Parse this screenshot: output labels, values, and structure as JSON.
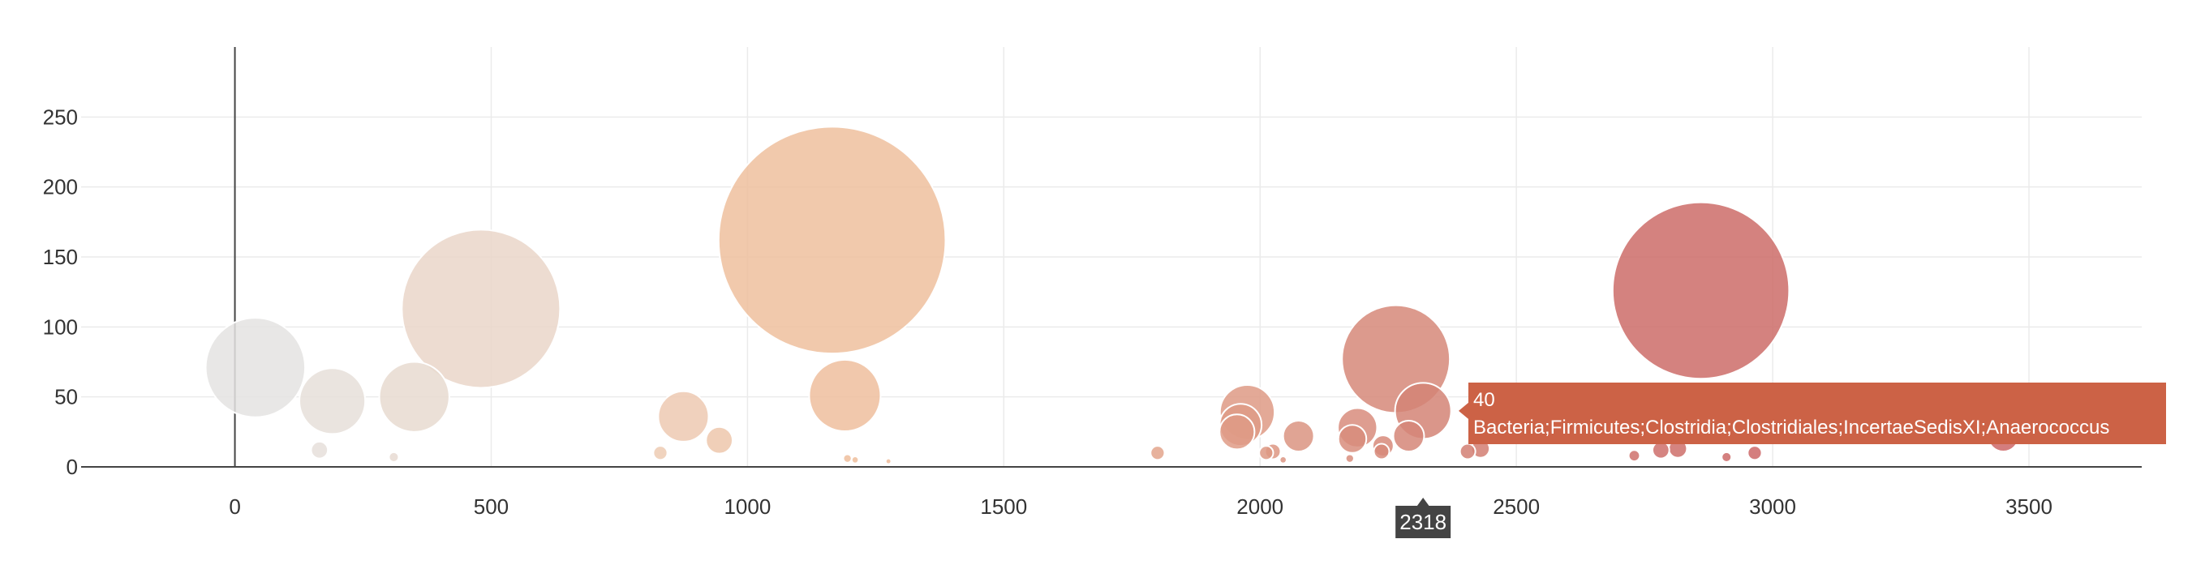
{
  "chart_data": {
    "type": "scatter",
    "subtype": "bubble",
    "xlim": [
      -300,
      3720
    ],
    "ylim": [
      0,
      300
    ],
    "x_ticks": [
      0,
      500,
      1000,
      1500,
      2000,
      2500,
      3000,
      3500
    ],
    "y_ticks": [
      0,
      50,
      100,
      150,
      200,
      250
    ],
    "grid": true,
    "colorscale": [
      "#e4e4e4",
      "#ebd3c2",
      "#efbe9c",
      "#e3a58c",
      "#d27f73",
      "#cc6666"
    ],
    "points": [
      {
        "x": 40,
        "y": 71,
        "size": 71
      },
      {
        "x": 190,
        "y": 47,
        "size": 47
      },
      {
        "x": 165,
        "y": 12,
        "size": 12
      },
      {
        "x": 350,
        "y": 50,
        "size": 50
      },
      {
        "x": 310,
        "y": 7,
        "size": 7
      },
      {
        "x": 480,
        "y": 113,
        "size": 113
      },
      {
        "x": 830,
        "y": 10,
        "size": 10
      },
      {
        "x": 875,
        "y": 36,
        "size": 36
      },
      {
        "x": 945,
        "y": 19,
        "size": 19
      },
      {
        "x": 1165,
        "y": 162,
        "size": 162
      },
      {
        "x": 1190,
        "y": 51,
        "size": 51
      },
      {
        "x": 1195,
        "y": 6,
        "size": 6
      },
      {
        "x": 1210,
        "y": 5,
        "size": 5
      },
      {
        "x": 1275,
        "y": 4,
        "size": 4
      },
      {
        "x": 1800,
        "y": 10,
        "size": 10
      },
      {
        "x": 1975,
        "y": 39,
        "size": 39
      },
      {
        "x": 1962,
        "y": 30,
        "size": 30
      },
      {
        "x": 1955,
        "y": 25,
        "size": 25
      },
      {
        "x": 2025,
        "y": 11,
        "size": 11
      },
      {
        "x": 2075,
        "y": 22,
        "size": 22
      },
      {
        "x": 2045,
        "y": 5,
        "size": 5
      },
      {
        "x": 2012,
        "y": 10,
        "size": 10
      },
      {
        "x": 2190,
        "y": 28,
        "size": 28
      },
      {
        "x": 2180,
        "y": 20,
        "size": 20
      },
      {
        "x": 2175,
        "y": 6,
        "size": 6
      },
      {
        "x": 2265,
        "y": 77,
        "size": 77
      },
      {
        "x": 2240,
        "y": 15,
        "size": 15
      },
      {
        "x": 2237,
        "y": 11,
        "size": 11
      },
      {
        "x": 2290,
        "y": 22,
        "size": 22
      },
      {
        "x": 2318,
        "y": 40,
        "size": 40
      },
      {
        "x": 2405,
        "y": 11,
        "size": 11
      },
      {
        "x": 2430,
        "y": 13,
        "size": 13
      },
      {
        "x": 2730,
        "y": 8,
        "size": 8
      },
      {
        "x": 2782,
        "y": 12,
        "size": 12
      },
      {
        "x": 2815,
        "y": 13,
        "size": 13
      },
      {
        "x": 2860,
        "y": 126,
        "size": 126
      },
      {
        "x": 2910,
        "y": 7,
        "size": 7
      },
      {
        "x": 2965,
        "y": 10,
        "size": 10
      },
      {
        "x": 3450,
        "y": 22,
        "size": 22
      }
    ],
    "hover": {
      "x_value": "2318",
      "y_value": "40",
      "taxonomy": "Bacteria;Firmicutes;Clostridia;Clostridiales;IncertaeSedisXI;Anaerococcus",
      "color": "#cc6246"
    }
  }
}
